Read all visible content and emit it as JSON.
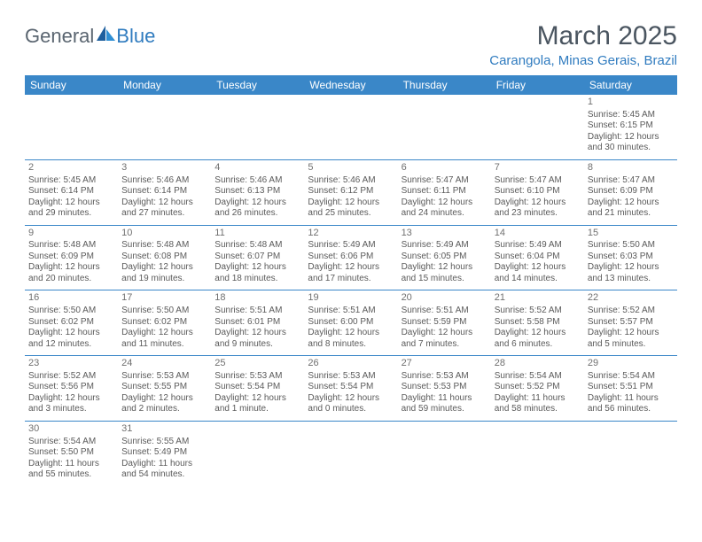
{
  "logo": {
    "general": "General",
    "blue": "Blue"
  },
  "title": "March 2025",
  "subtitle": "Carangola, Minas Gerais, Brazil",
  "colors": {
    "header_bg": "#3a87c8",
    "header_text": "#ffffff",
    "title_text": "#4a5560",
    "subtitle_text": "#2f7bbf",
    "cell_border": "#3a87c8",
    "body_text": "#5a5a5a",
    "logo_gray": "#5a6570",
    "logo_blue": "#2f7bbf"
  },
  "weekdays": [
    "Sunday",
    "Monday",
    "Tuesday",
    "Wednesday",
    "Thursday",
    "Friday",
    "Saturday"
  ],
  "weeks": [
    [
      null,
      null,
      null,
      null,
      null,
      null,
      {
        "n": "1",
        "sr": "Sunrise: 5:45 AM",
        "ss": "Sunset: 6:15 PM",
        "dl": "Daylight: 12 hours and 30 minutes."
      }
    ],
    [
      {
        "n": "2",
        "sr": "Sunrise: 5:45 AM",
        "ss": "Sunset: 6:14 PM",
        "dl": "Daylight: 12 hours and 29 minutes."
      },
      {
        "n": "3",
        "sr": "Sunrise: 5:46 AM",
        "ss": "Sunset: 6:14 PM",
        "dl": "Daylight: 12 hours and 27 minutes."
      },
      {
        "n": "4",
        "sr": "Sunrise: 5:46 AM",
        "ss": "Sunset: 6:13 PM",
        "dl": "Daylight: 12 hours and 26 minutes."
      },
      {
        "n": "5",
        "sr": "Sunrise: 5:46 AM",
        "ss": "Sunset: 6:12 PM",
        "dl": "Daylight: 12 hours and 25 minutes."
      },
      {
        "n": "6",
        "sr": "Sunrise: 5:47 AM",
        "ss": "Sunset: 6:11 PM",
        "dl": "Daylight: 12 hours and 24 minutes."
      },
      {
        "n": "7",
        "sr": "Sunrise: 5:47 AM",
        "ss": "Sunset: 6:10 PM",
        "dl": "Daylight: 12 hours and 23 minutes."
      },
      {
        "n": "8",
        "sr": "Sunrise: 5:47 AM",
        "ss": "Sunset: 6:09 PM",
        "dl": "Daylight: 12 hours and 21 minutes."
      }
    ],
    [
      {
        "n": "9",
        "sr": "Sunrise: 5:48 AM",
        "ss": "Sunset: 6:09 PM",
        "dl": "Daylight: 12 hours and 20 minutes."
      },
      {
        "n": "10",
        "sr": "Sunrise: 5:48 AM",
        "ss": "Sunset: 6:08 PM",
        "dl": "Daylight: 12 hours and 19 minutes."
      },
      {
        "n": "11",
        "sr": "Sunrise: 5:48 AM",
        "ss": "Sunset: 6:07 PM",
        "dl": "Daylight: 12 hours and 18 minutes."
      },
      {
        "n": "12",
        "sr": "Sunrise: 5:49 AM",
        "ss": "Sunset: 6:06 PM",
        "dl": "Daylight: 12 hours and 17 minutes."
      },
      {
        "n": "13",
        "sr": "Sunrise: 5:49 AM",
        "ss": "Sunset: 6:05 PM",
        "dl": "Daylight: 12 hours and 15 minutes."
      },
      {
        "n": "14",
        "sr": "Sunrise: 5:49 AM",
        "ss": "Sunset: 6:04 PM",
        "dl": "Daylight: 12 hours and 14 minutes."
      },
      {
        "n": "15",
        "sr": "Sunrise: 5:50 AM",
        "ss": "Sunset: 6:03 PM",
        "dl": "Daylight: 12 hours and 13 minutes."
      }
    ],
    [
      {
        "n": "16",
        "sr": "Sunrise: 5:50 AM",
        "ss": "Sunset: 6:02 PM",
        "dl": "Daylight: 12 hours and 12 minutes."
      },
      {
        "n": "17",
        "sr": "Sunrise: 5:50 AM",
        "ss": "Sunset: 6:02 PM",
        "dl": "Daylight: 12 hours and 11 minutes."
      },
      {
        "n": "18",
        "sr": "Sunrise: 5:51 AM",
        "ss": "Sunset: 6:01 PM",
        "dl": "Daylight: 12 hours and 9 minutes."
      },
      {
        "n": "19",
        "sr": "Sunrise: 5:51 AM",
        "ss": "Sunset: 6:00 PM",
        "dl": "Daylight: 12 hours and 8 minutes."
      },
      {
        "n": "20",
        "sr": "Sunrise: 5:51 AM",
        "ss": "Sunset: 5:59 PM",
        "dl": "Daylight: 12 hours and 7 minutes."
      },
      {
        "n": "21",
        "sr": "Sunrise: 5:52 AM",
        "ss": "Sunset: 5:58 PM",
        "dl": "Daylight: 12 hours and 6 minutes."
      },
      {
        "n": "22",
        "sr": "Sunrise: 5:52 AM",
        "ss": "Sunset: 5:57 PM",
        "dl": "Daylight: 12 hours and 5 minutes."
      }
    ],
    [
      {
        "n": "23",
        "sr": "Sunrise: 5:52 AM",
        "ss": "Sunset: 5:56 PM",
        "dl": "Daylight: 12 hours and 3 minutes."
      },
      {
        "n": "24",
        "sr": "Sunrise: 5:53 AM",
        "ss": "Sunset: 5:55 PM",
        "dl": "Daylight: 12 hours and 2 minutes."
      },
      {
        "n": "25",
        "sr": "Sunrise: 5:53 AM",
        "ss": "Sunset: 5:54 PM",
        "dl": "Daylight: 12 hours and 1 minute."
      },
      {
        "n": "26",
        "sr": "Sunrise: 5:53 AM",
        "ss": "Sunset: 5:54 PM",
        "dl": "Daylight: 12 hours and 0 minutes."
      },
      {
        "n": "27",
        "sr": "Sunrise: 5:53 AM",
        "ss": "Sunset: 5:53 PM",
        "dl": "Daylight: 11 hours and 59 minutes."
      },
      {
        "n": "28",
        "sr": "Sunrise: 5:54 AM",
        "ss": "Sunset: 5:52 PM",
        "dl": "Daylight: 11 hours and 58 minutes."
      },
      {
        "n": "29",
        "sr": "Sunrise: 5:54 AM",
        "ss": "Sunset: 5:51 PM",
        "dl": "Daylight: 11 hours and 56 minutes."
      }
    ],
    [
      {
        "n": "30",
        "sr": "Sunrise: 5:54 AM",
        "ss": "Sunset: 5:50 PM",
        "dl": "Daylight: 11 hours and 55 minutes."
      },
      {
        "n": "31",
        "sr": "Sunrise: 5:55 AM",
        "ss": "Sunset: 5:49 PM",
        "dl": "Daylight: 11 hours and 54 minutes."
      },
      null,
      null,
      null,
      null,
      null
    ]
  ]
}
